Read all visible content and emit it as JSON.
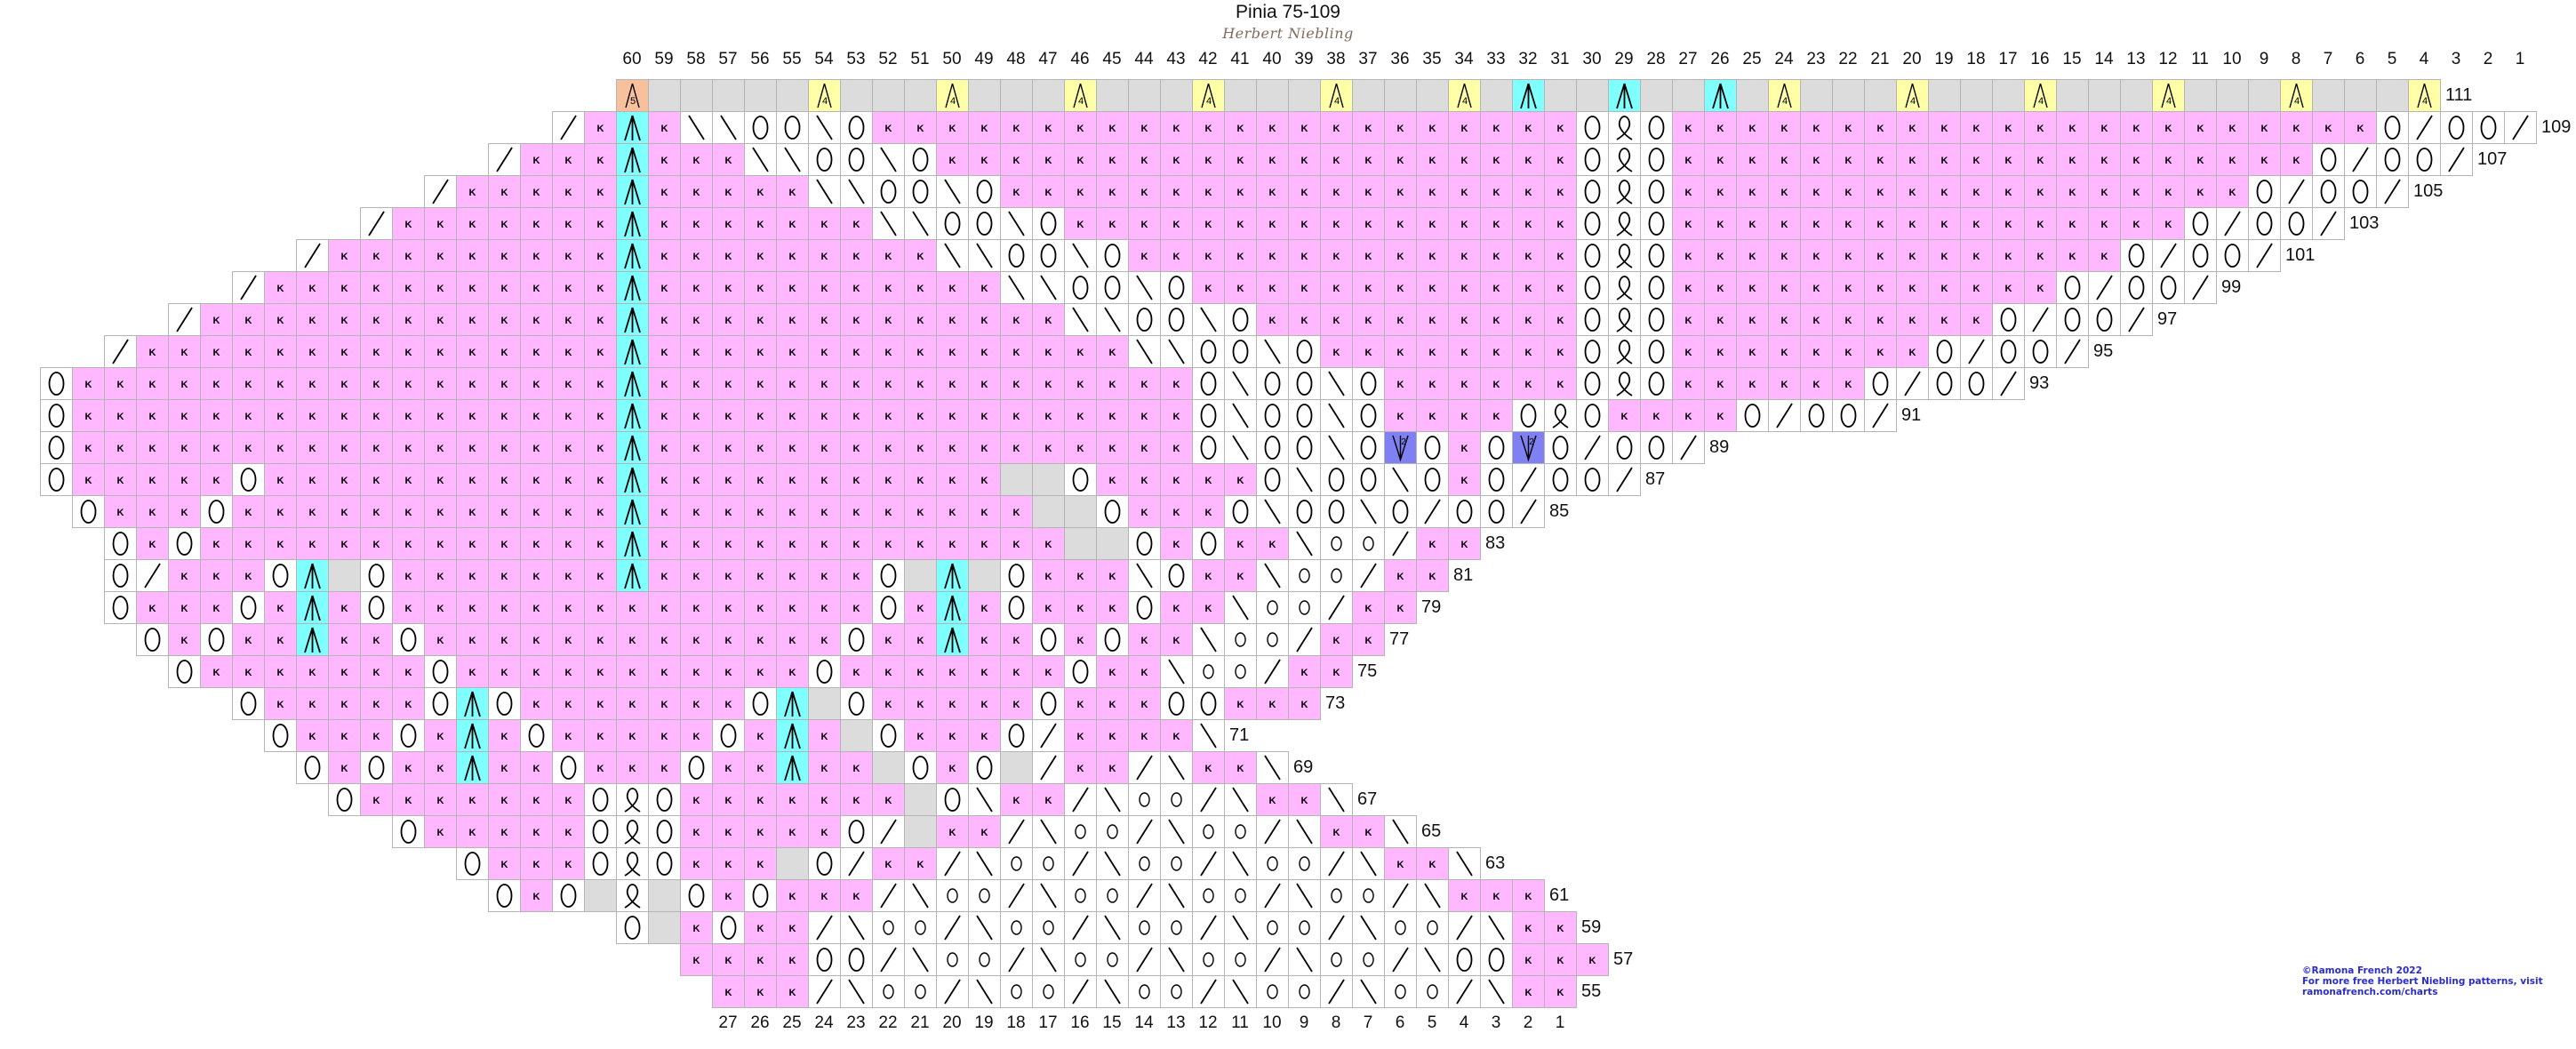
{
  "header": {
    "title": "Pinia 75-109",
    "subtitle": "Herbert Niebling"
  },
  "credit": {
    "line1": "©Ramona French 2022",
    "line2": "For more free Herbert Niebling patterns, visit",
    "line3": "ramonafrench.com/charts"
  },
  "top_column_numbers": [
    "60",
    "59",
    "58",
    "57",
    "56",
    "55",
    "54",
    "53",
    "52",
    "51",
    "50",
    "49",
    "48",
    "47",
    "46",
    "45",
    "44",
    "43",
    "42",
    "41",
    "40",
    "39",
    "38",
    "37",
    "36",
    "35",
    "34",
    "33",
    "32",
    "31",
    "30",
    "29",
    "28",
    "27",
    "26",
    "25",
    "24",
    "23",
    "22",
    "21",
    "20",
    "19",
    "18",
    "17",
    "16",
    "15",
    "14",
    "13",
    "12",
    "11",
    "10",
    "9",
    "8",
    "7",
    "6",
    "5",
    "4",
    "3",
    "2",
    "1"
  ],
  "bottom_column_numbers": [
    "27",
    "26",
    "25",
    "24",
    "23",
    "22",
    "21",
    "20",
    "19",
    "18",
    "17",
    "16",
    "15",
    "14",
    "13",
    "12",
    "11",
    "10",
    "9",
    "8",
    "7",
    "6",
    "5",
    "4",
    "3",
    "2",
    "1"
  ],
  "symbols": {
    "K": {
      "meaning": "knit",
      "glyph": "K",
      "color": "#ffb8ff"
    },
    "O": {
      "meaning": "yarn over",
      "glyph": "circle",
      "color": "#ffffff"
    },
    "o": {
      "meaning": "small yarn over",
      "glyph": "small-circle",
      "color": "#ffffff"
    },
    "R": {
      "meaning": "right-leaning decrease",
      "glyph": "/",
      "color": "#ffffff"
    },
    "L": {
      "meaning": "left-leaning decrease",
      "glyph": "\\",
      "color": "#ffffff"
    },
    "A": {
      "meaning": "central double decrease",
      "glyph": "triple-caret",
      "color": "#80ffff"
    },
    "Y": {
      "meaning": "4-stitch decrease",
      "glyph": "caret-4",
      "label": "4",
      "color": "#ffffa8"
    },
    "S": {
      "meaning": "5-stitch decrease",
      "glyph": "caret-5",
      "label": "5",
      "color": "#f9c09e"
    },
    "V": {
      "meaning": "2-stitch increase",
      "glyph": "v-2",
      "label": "2",
      "color": "#7f80f2"
    },
    "Q": {
      "meaning": "twisted loop",
      "glyph": "loop",
      "color": "#ffffff"
    },
    "G": {
      "meaning": "no stitch",
      "glyph": "",
      "color": "#dcdcdc"
    }
  },
  "rows": [
    {
      "label": "111",
      "start": 60,
      "cells": "S G5 Y G3 Y G3 Y G3 Y G3 Y G3 Y G A G2 A G2 A G Y G3 Y G3 Y G3 Y G3 Y G3 Y"
    },
    {
      "label": "109",
      "start": 62,
      "cells": "R K A K L L O O L O K22 O Q O K22 O R O O R"
    },
    {
      "label": "107",
      "start": 64,
      "cells": "R K3 A K3 L L O O L O K20 O Q O K20 O R O O R"
    },
    {
      "label": "105",
      "start": 66,
      "cells": "R K5 A K5 L L O O L O K18 O Q O K18 O R O O R"
    },
    {
      "label": "103",
      "start": 68,
      "cells": "R K7 A K7 L L O O L O K16 O Q O K16 O R O O R"
    },
    {
      "label": "101",
      "start": 70,
      "cells": "R K9 A K9 L L O O L O K14 O Q O K14 O R O O R"
    },
    {
      "label": "99",
      "start": 72,
      "cells": "R K11 A K11 L L O O L O K12 O Q O K12 O R O O R"
    },
    {
      "label": "97",
      "start": 74,
      "cells": "R K13 A K13 L L O O L O K10 O Q O K10 O R O O R"
    },
    {
      "label": "95",
      "start": 76,
      "cells": "R K15 A K15 L L O O L O K8 O Q O K8 O R O O R"
    },
    {
      "label": "93",
      "start": 78,
      "cells": "O K17 A K17 O L O O L O K6 O Q O K6 O R O O R"
    },
    {
      "label": "91",
      "start": 78,
      "cells": "O K17 A K17 O L O O L O K4 O Q O K4 O R O O R"
    },
    {
      "label": "89",
      "start": 78,
      "cells": "O K17 A K17 O L O O L O V O K O V O R O O R"
    },
    {
      "label": "87",
      "start": 78,
      "cells": "O K5 O K11 A K11 G2 O K5 O L O O L O K O R O O R"
    },
    {
      "label": "85",
      "start": 77,
      "cells": "O K3 O K12 A K12 G2 O K3 O L O O L O R O O R"
    },
    {
      "label": "83",
      "start": 76,
      "cells": "O K O K13 A K13 G2 O K O K2 L o o R K2"
    },
    {
      "label": "81",
      "start": 76,
      "cells": "O R K3 O A G O K7 A K7 O G A G O K3 L O K2 L o o R K2"
    },
    {
      "label": "79",
      "start": 76,
      "cells": "O K3 O K A K O K15 O K A K O K3 O K2 L o o R K2"
    },
    {
      "label": "77",
      "start": 75,
      "cells": "O K O K2 A K2 O K13 O K2 A K2 O K O K2 L o o R K2"
    },
    {
      "label": "75",
      "start": 74,
      "cells": "O K7 O K11 O K7 O K2 L o o R K2"
    },
    {
      "label": "73",
      "start": 72,
      "cells": "O K5 O A O K7 O A G O K5 O K3 O O K3"
    },
    {
      "label": "71",
      "start": 71,
      "cells": "O K3 O K A K O K5 O K A K G O K3 O R K4 L"
    },
    {
      "label": "69",
      "start": 70,
      "cells": "O K O K2 A K2 O K3 O K2 A K2 G O K O G R K2 R L K2 L"
    },
    {
      "label": "67",
      "start": 69,
      "cells": "O K7 O Q O K7 G O L K2 R L o o R L K2 L"
    },
    {
      "label": "65",
      "start": 67,
      "cells": "O K5 O Q O K5 O R G K2 R L o o R L o o R L K2 L"
    },
    {
      "label": "63",
      "start": 65,
      "cells": "O K3 O Q O K3 G O R K2 R L o o R L o o R L o o R L K2 L"
    },
    {
      "label": "61",
      "start": 64,
      "cells": "O K O G Q G O K O K3 R L o o R L o o R L o o R L o o R L K3"
    },
    {
      "label": "59",
      "start": 60,
      "cells": "O G K O K2 R L o o R L o o R L o o R L o o R L o o R L K2"
    },
    {
      "label": "57",
      "start": 58,
      "cells": "K4 O O R L o o R L o o R L o o R L o o R L O O K3"
    },
    {
      "label": "55",
      "start": 57,
      "cells": "K3 R L o o R L o o R L o o R L o o R L o o R L K2"
    }
  ]
}
